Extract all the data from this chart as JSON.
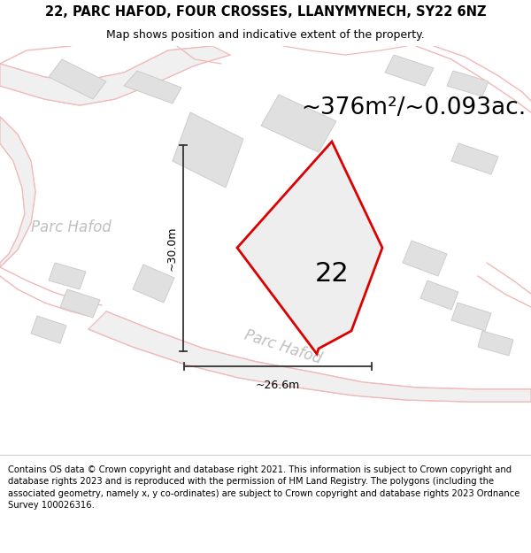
{
  "title_line1": "22, PARC HAFOD, FOUR CROSSES, LLANYMYNECH, SY22 6NZ",
  "title_line2": "Map shows position and indicative extent of the property.",
  "area_text": "~376m²/~0.093ac.",
  "label_22": "22",
  "dim_vertical": "~30.0m",
  "dim_horizontal": "~26.6m",
  "watermark_left": "Parc Hafod",
  "watermark_bottom": "Parc Hafod",
  "footer": "Contains OS data © Crown copyright and database right 2021. This information is subject to Crown copyright and database rights 2023 and is reproduced with the permission of HM Land Registry. The polygons (including the associated geometry, namely x, y co-ordinates) are subject to Crown copyright and database rights 2023 Ordnance Survey 100026316.",
  "map_bg": "#ffffff",
  "road_color": "#f0b8b8",
  "road_fill_color": "#ebebeb",
  "building_color": "#e0e0e0",
  "building_edge": "#cccccc",
  "highlight_color": "#dd0000",
  "plot_fill": "#e8e8e8",
  "dim_line_color": "#333333",
  "title_fontsize": 10.5,
  "subtitle_fontsize": 9,
  "area_fontsize": 19,
  "label_fontsize": 22,
  "footer_fontsize": 7.2,
  "watermark_fontsize": 12,
  "watermark_color": "#c0c0c0"
}
